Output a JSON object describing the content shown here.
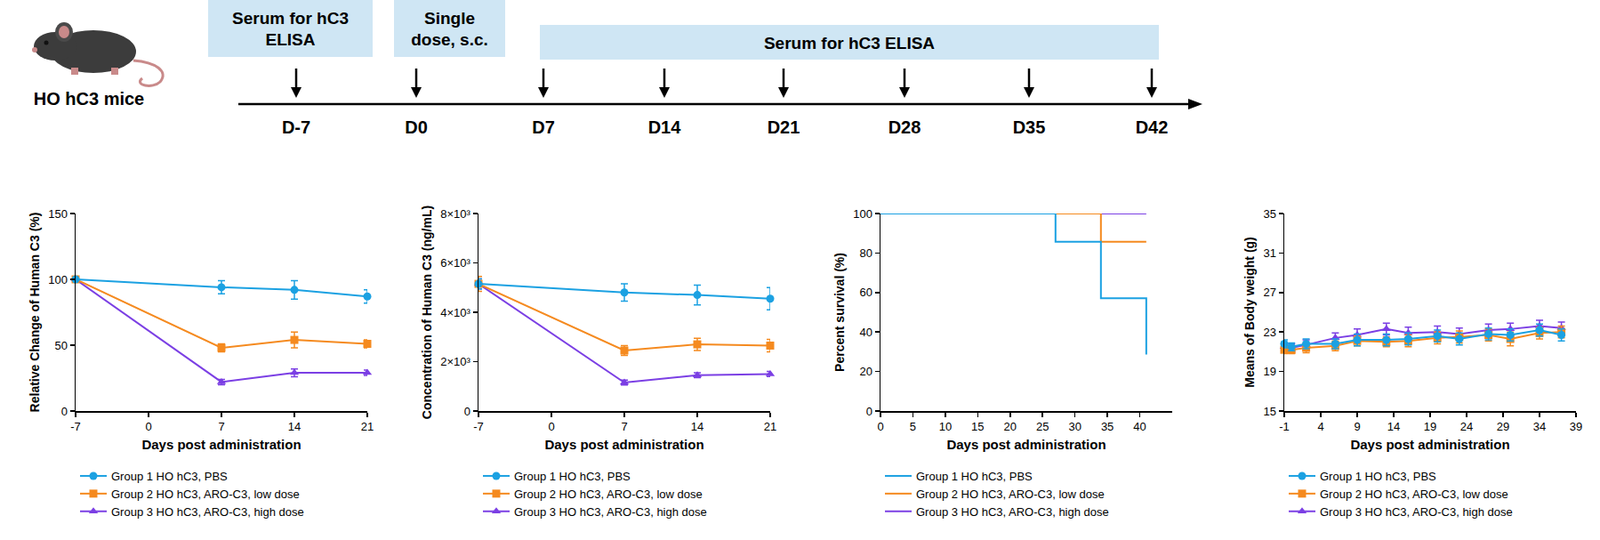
{
  "timeline": {
    "subject": "HO hC3 mice",
    "days": [
      "D-7",
      "D0",
      "D7",
      "D14",
      "D21",
      "D28",
      "D35",
      "D42"
    ],
    "boxes": [
      {
        "lines": [
          "Serum for hC3",
          "ELISA"
        ],
        "from": "D-7",
        "to": "D-7"
      },
      {
        "lines": [
          "Single",
          "dose, s.c."
        ],
        "from": "D0",
        "to": "D0"
      },
      {
        "lines": [
          "Serum for hC3 ELISA"
        ],
        "from": "D7",
        "to": "D42"
      }
    ]
  },
  "chart_data": [
    {
      "type": "line",
      "xlabel": "Days post administration",
      "ylabel": "Relative Change of Human C3 (%)",
      "x": [
        -7,
        7,
        14,
        21
      ],
      "xlim": [
        -7,
        21
      ],
      "xticks": [
        -7,
        0,
        7,
        14,
        21
      ],
      "ylim": [
        0,
        150
      ],
      "yticks": [
        0,
        50,
        100,
        150
      ],
      "grid": false,
      "legend": "bottom",
      "series": [
        {
          "name": "Group 1 HO hC3, PBS",
          "color": "#1ba1e2",
          "marker": "circle",
          "values": [
            100,
            94,
            92,
            87
          ],
          "error": [
            0,
            5,
            7,
            5
          ]
        },
        {
          "name": "Group 2 HO hC3, ARO-C3, low dose",
          "color": "#f58a1f",
          "marker": "square",
          "values": [
            100,
            48,
            54,
            51
          ],
          "error": [
            0,
            3,
            6,
            3
          ]
        },
        {
          "name": "Group 3 HO hC3, ARO-C3, high dose",
          "color": "#7b3fe4",
          "marker": "triangle-up",
          "values": [
            100,
            22,
            29,
            29
          ],
          "error": [
            0,
            2,
            3,
            2
          ]
        }
      ]
    },
    {
      "type": "line",
      "xlabel": "Days post administration",
      "ylabel": "Concentration of Human C3 (ng/mL)",
      "x": [
        -7,
        7,
        14,
        21
      ],
      "xlim": [
        -7,
        21
      ],
      "xticks": [
        -7,
        0,
        7,
        14,
        21
      ],
      "ylim": [
        0,
        8000
      ],
      "yticks": [
        0,
        {
          "value": 2000,
          "label": "2×10³"
        },
        {
          "value": 4000,
          "label": "4×10³"
        },
        {
          "value": 6000,
          "label": "6×10³"
        },
        {
          "value": 8000,
          "label": "8×10³"
        }
      ],
      "grid": false,
      "legend": "bottom",
      "series": [
        {
          "name": "Group 1 HO hC3, PBS",
          "color": "#1ba1e2",
          "marker": "circle",
          "values": [
            5150,
            4800,
            4700,
            4550
          ],
          "error": [
            200,
            350,
            400,
            450
          ]
        },
        {
          "name": "Group 2 HO hC3, ARO-C3, low dose",
          "color": "#f58a1f",
          "marker": "square",
          "values": [
            5150,
            2450,
            2700,
            2650
          ],
          "error": [
            300,
            200,
            250,
            250
          ]
        },
        {
          "name": "Group 3 HO hC3, ARO-C3, high dose",
          "color": "#7b3fe4",
          "marker": "triangle-up",
          "values": [
            5150,
            1150,
            1450,
            1500
          ],
          "error": [
            200,
            100,
            100,
            100
          ]
        }
      ]
    },
    {
      "type": "step",
      "xlabel": "Days post administration",
      "ylabel": "Percent survival (%)",
      "xlim": [
        0,
        45
      ],
      "xticks": [
        0,
        5,
        10,
        15,
        20,
        25,
        30,
        35,
        40
      ],
      "ylim": [
        0,
        100
      ],
      "yticks": [
        0,
        20,
        40,
        60,
        80,
        100
      ],
      "grid": false,
      "legend": "bottom",
      "series": [
        {
          "name": "Group 1 HO hC3, PBS",
          "color": "#1ba1e2",
          "x": [
            0,
            27,
            34,
            41
          ],
          "values": [
            100,
            85.7,
            57.1,
            28.6
          ]
        },
        {
          "name": "Group 2 HO hC3, ARO-C3, low dose",
          "color": "#f58a1f",
          "x": [
            0,
            34,
            41
          ],
          "values": [
            100,
            85.7,
            85.7
          ]
        },
        {
          "name": "Group 3 HO hC3, ARO-C3, high dose",
          "color": "#7b3fe4",
          "x": [
            0,
            41
          ],
          "values": [
            100,
            100
          ]
        }
      ]
    },
    {
      "type": "line",
      "xlabel": "Days post administration",
      "ylabel": "Means of Body weight (g)",
      "x": [
        -1,
        0,
        2,
        6,
        9,
        13,
        16,
        20,
        23,
        27,
        30,
        34,
        37
      ],
      "xlim": [
        -1,
        39
      ],
      "xticks": [
        -1,
        4,
        9,
        14,
        19,
        24,
        29,
        34,
        39
      ],
      "ylim": [
        15,
        35
      ],
      "yticks": [
        15,
        19,
        23,
        27,
        31,
        35
      ],
      "grid": false,
      "legend": "bottom",
      "series": [
        {
          "name": "Group 1 HO hC3, PBS",
          "color": "#1ba1e2",
          "marker": "circle",
          "values": [
            21.8,
            21.5,
            21.8,
            21.8,
            22.2,
            22.2,
            22.3,
            22.6,
            22.3,
            22.8,
            22.7,
            23.2,
            22.7
          ],
          "error": [
            0.4,
            0.4,
            0.5,
            0.5,
            0.6,
            0.6,
            0.6,
            0.6,
            0.6,
            0.6,
            0.6,
            0.6,
            0.6
          ]
        },
        {
          "name": "Group 2 HO hC3, ARO-C3, low dose",
          "color": "#f58a1f",
          "marker": "square",
          "values": [
            21.2,
            21.2,
            21.4,
            21.6,
            22.1,
            22.0,
            22.1,
            22.4,
            22.5,
            22.7,
            22.3,
            22.9,
            23.0
          ],
          "error": [
            0.4,
            0.4,
            0.5,
            0.5,
            0.5,
            0.5,
            0.6,
            0.6,
            0.6,
            0.6,
            0.7,
            0.6,
            0.6
          ]
        },
        {
          "name": "Group 3 HO hC3, ARO-C3, high dose",
          "color": "#7b3fe4",
          "marker": "triangle-up",
          "values": [
            21.5,
            21.4,
            21.7,
            22.4,
            22.7,
            23.3,
            22.9,
            23.0,
            22.8,
            23.2,
            23.3,
            23.6,
            23.4
          ],
          "error": [
            0.4,
            0.4,
            0.5,
            0.5,
            0.6,
            0.6,
            0.6,
            0.6,
            0.6,
            0.6,
            0.6,
            0.6,
            0.6
          ]
        }
      ]
    }
  ]
}
